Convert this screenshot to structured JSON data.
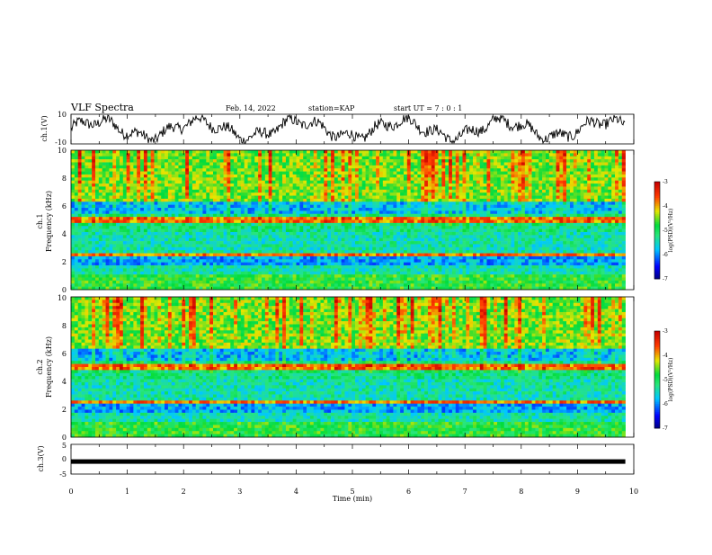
{
  "header": {
    "title": "VLF Spectra",
    "date": "Feb. 14, 2022",
    "station": "station=KAP",
    "start": "start UT =  7 : 0 : 1"
  },
  "chart_data": [
    {
      "type": "line",
      "name": "ch1_waveform",
      "ylabel": "ch.1(V)",
      "ylim": [
        -10,
        10
      ],
      "yticks": [
        "10",
        "-10"
      ],
      "xlim": [
        0,
        10
      ],
      "x_extent_min": 9.85,
      "color": "#000000"
    },
    {
      "type": "heatmap",
      "name": "ch1_spectrogram",
      "ylabel": "ch.1\nFrequency (kHz)",
      "ylim": [
        0,
        10
      ],
      "yticks": [
        "0",
        "2",
        "4",
        "6",
        "8",
        "10"
      ],
      "xlim": [
        0,
        10
      ],
      "x_extent_min": 9.85,
      "colorbar": {
        "ticks": [
          "-3",
          "-4",
          "-5",
          "-6",
          "-7"
        ],
        "label": "log(PSD)(V²/Hz)",
        "range": [
          -7,
          -3
        ]
      }
    },
    {
      "type": "heatmap",
      "name": "ch2_spectrogram",
      "ylabel": "ch.2\nFrequency (kHz)",
      "ylim": [
        0,
        10
      ],
      "yticks": [
        "0",
        "2",
        "4",
        "6",
        "8",
        "10"
      ],
      "xlim": [
        0,
        10
      ],
      "x_extent_min": 9.85,
      "colorbar": {
        "ticks": [
          "-3",
          "-4",
          "-5",
          "-6",
          "-7"
        ],
        "label": "log(PSD)(V²/Hz)",
        "range": [
          -7,
          -3
        ]
      }
    },
    {
      "type": "line",
      "name": "ch3_waveform",
      "ylabel": "ch.3(V)",
      "ylim": [
        -5,
        5
      ],
      "yticks": [
        "5",
        "0",
        "-5"
      ],
      "xlim": [
        0,
        10
      ],
      "x_extent_min": 9.85,
      "constant_value": -0.8,
      "color": "#000000"
    }
  ],
  "xaxis": {
    "label": "Time (min)",
    "ticks": [
      "0",
      "1",
      "2",
      "3",
      "4",
      "5",
      "6",
      "7",
      "8",
      "9",
      "10"
    ]
  }
}
